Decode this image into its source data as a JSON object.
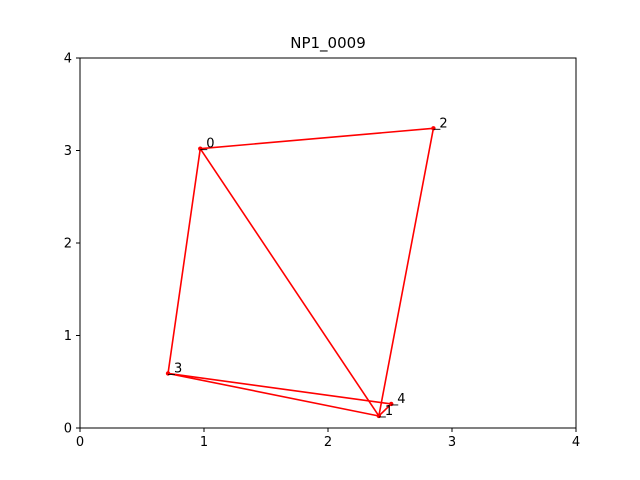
{
  "chart_data": {
    "type": "line",
    "title": "NP1_0009",
    "xlabel": "",
    "ylabel": "",
    "xlim": [
      0,
      4
    ],
    "ylim": [
      0,
      4
    ],
    "xticks": [
      "0",
      "1",
      "2",
      "3",
      "4"
    ],
    "yticks": [
      "0",
      "1",
      "2",
      "3",
      "4"
    ],
    "grid": false,
    "color": "#ff0000",
    "points": [
      {
        "label": "0",
        "x": 0.97,
        "y": 3.02
      },
      {
        "label": "1",
        "x": 2.41,
        "y": 0.13
      },
      {
        "label": "2",
        "x": 2.85,
        "y": 3.24
      },
      {
        "label": "3",
        "x": 0.71,
        "y": 0.59
      },
      {
        "label": "4",
        "x": 2.51,
        "y": 0.26
      }
    ],
    "path_order": [
      "0",
      "2",
      "1",
      "4",
      "3",
      "1",
      "0",
      "3"
    ]
  }
}
